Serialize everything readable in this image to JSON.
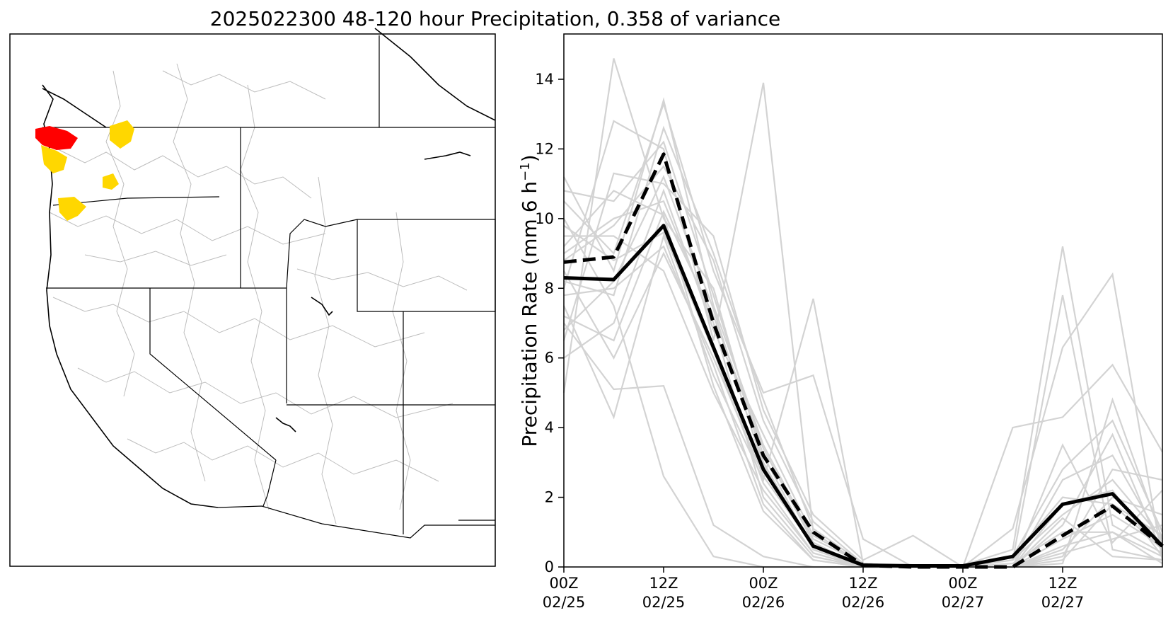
{
  "title": "2025022300 48-120 hour Precipitation, 0.358 of variance",
  "map": {
    "colors": {
      "high": "#ff0000",
      "medium": "#ffd700",
      "basins": "#bdbdbd",
      "borders": "#000000"
    }
  },
  "chart_data": {
    "type": "line",
    "title": "",
    "xlabel": "",
    "ylabel": "Precipitation Rate (mm 6 h",
    "ylabel_sup": "−1",
    "ylabel_close": ")",
    "x": [
      0,
      6,
      12,
      18,
      24,
      30,
      36,
      42,
      48,
      54,
      60,
      66,
      72
    ],
    "xticks": [
      {
        "x": 0,
        "line1": "00Z",
        "line2": "02/25"
      },
      {
        "x": 12,
        "line1": "12Z",
        "line2": "02/25"
      },
      {
        "x": 24,
        "line1": "00Z",
        "line2": "02/26"
      },
      {
        "x": 36,
        "line1": "12Z",
        "line2": "02/26"
      },
      {
        "x": 48,
        "line1": "00Z",
        "line2": "02/27"
      },
      {
        "x": 60,
        "line1": "12Z",
        "line2": "02/27"
      }
    ],
    "yticks": [
      0,
      2,
      4,
      6,
      8,
      10,
      12,
      14
    ],
    "xlim": [
      0,
      72
    ],
    "ylim": [
      0,
      15.3
    ],
    "grid": false,
    "series": [
      {
        "role": "mean",
        "color": "#000000",
        "style": "solid",
        "values": [
          8.3,
          8.25,
          9.8,
          6.3,
          2.8,
          0.6,
          0.05,
          0.03,
          0.03,
          0.3,
          1.8,
          2.1,
          0.6
        ]
      },
      {
        "role": "control",
        "color": "#000000",
        "style": "dashed",
        "values": [
          8.75,
          8.9,
          11.85,
          7.0,
          3.2,
          1.0,
          0.05,
          0.0,
          0.0,
          0.0,
          0.9,
          1.75,
          0.6
        ]
      }
    ],
    "members": [
      [
        11.2,
        8.5,
        13.4,
        7.5,
        3.5,
        0.8,
        0.1,
        0.0,
        0.0,
        0.2,
        1.5,
        2.5,
        0.8
      ],
      [
        5.0,
        14.6,
        10.0,
        8.0,
        3.0,
        0.5,
        0.0,
        0.0,
        0.0,
        0.3,
        2.0,
        1.8,
        0.5
      ],
      [
        8.0,
        12.8,
        12.0,
        6.5,
        13.9,
        1.0,
        0.05,
        0.0,
        0.0,
        0.1,
        1.0,
        1.0,
        0.3
      ],
      [
        7.5,
        4.3,
        9.5,
        5.5,
        2.5,
        7.7,
        0.1,
        0.0,
        0.05,
        0.5,
        9.2,
        1.2,
        0.4
      ],
      [
        10.5,
        9.0,
        13.3,
        8.5,
        5.0,
        5.5,
        0.8,
        0.0,
        0.0,
        0.2,
        7.8,
        0.5,
        0.2
      ],
      [
        6.5,
        11.3,
        11.0,
        9.5,
        4.5,
        1.5,
        0.2,
        0.9,
        0.0,
        1.1,
        6.3,
        8.4,
        0.2
      ],
      [
        9.0,
        10.0,
        10.5,
        7.0,
        2.0,
        0.3,
        0.0,
        0.0,
        0.0,
        4.0,
        4.3,
        5.8,
        3.3
      ],
      [
        7.0,
        5.1,
        5.2,
        1.2,
        0.3,
        0.0,
        0.0,
        0.0,
        0.0,
        0.0,
        0.5,
        2.0,
        1.5
      ],
      [
        10.0,
        7.5,
        2.6,
        0.3,
        0.0,
        0.0,
        0.0,
        0.0,
        0.0,
        0.0,
        0.1,
        4.8,
        0.8
      ],
      [
        8.5,
        6.0,
        9.0,
        6.0,
        2.6,
        0.6,
        0.0,
        0.0,
        0.0,
        0.0,
        3.5,
        0.7,
        2.2
      ],
      [
        9.5,
        9.5,
        8.5,
        5.0,
        2.2,
        0.4,
        0.0,
        0.0,
        0.0,
        0.3,
        2.8,
        4.2,
        1.0
      ],
      [
        7.8,
        8.0,
        9.2,
        5.8,
        1.8,
        0.2,
        0.0,
        0.0,
        0.0,
        0.0,
        0.8,
        1.5,
        0.6
      ],
      [
        6.0,
        7.0,
        10.8,
        6.8,
        3.8,
        0.9,
        0.1,
        0.0,
        0.0,
        0.0,
        1.2,
        3.8,
        0.4
      ],
      [
        10.8,
        10.5,
        12.2,
        7.8,
        3.2,
        0.5,
        0.0,
        0.0,
        0.0,
        0.0,
        0.3,
        2.8,
        2.5
      ],
      [
        8.8,
        9.8,
        11.5,
        8.8,
        4.2,
        1.3,
        0.1,
        0.0,
        0.0,
        0.0,
        0.6,
        1.0,
        0.1
      ],
      [
        9.8,
        8.8,
        9.6,
        6.2,
        2.4,
        0.4,
        0.0,
        0.0,
        0.0,
        0.0,
        1.8,
        2.2,
        0.3
      ],
      [
        7.2,
        6.5,
        10.2,
        7.2,
        3.4,
        0.7,
        0.0,
        0.0,
        0.0,
        0.0,
        0.4,
        0.8,
        1.2
      ],
      [
        8.2,
        7.8,
        12.6,
        9.0,
        4.8,
        1.1,
        0.1,
        0.0,
        0.0,
        0.0,
        2.5,
        3.2,
        0.7
      ],
      [
        9.2,
        10.8,
        10.1,
        5.2,
        1.6,
        0.2,
        0.0,
        0.0,
        0.0,
        0.0,
        1.4,
        0.3,
        0.2
      ],
      [
        6.8,
        8.2,
        11.2,
        7.4,
        2.9,
        0.6,
        0.0,
        0.0,
        0.0,
        0.0,
        0.2,
        1.8,
        0.9
      ]
    ]
  }
}
